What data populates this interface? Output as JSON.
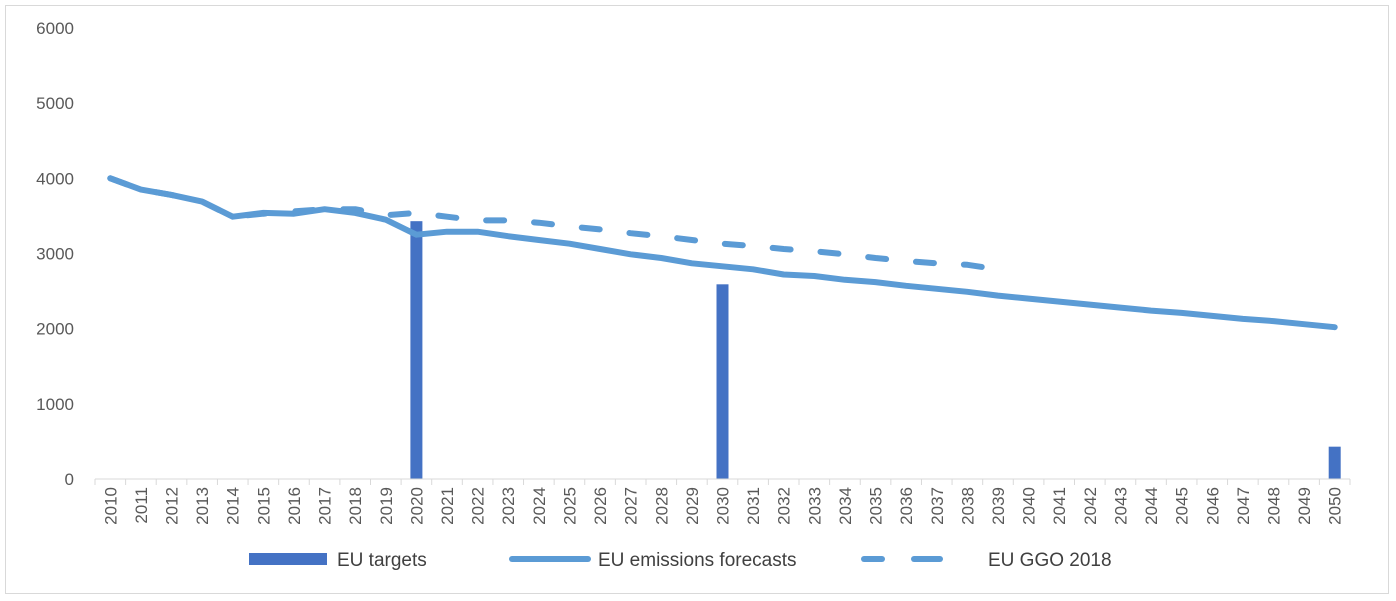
{
  "chart_data": {
    "type": "bar+line",
    "title": "",
    "xlabel": "",
    "ylabel": "",
    "ylim": [
      0,
      6000
    ],
    "yticks": [
      0,
      1000,
      2000,
      3000,
      4000,
      5000,
      6000
    ],
    "grid": false,
    "legend_position": "bottom",
    "categories": [
      "2010",
      "2011",
      "2012",
      "2013",
      "2014",
      "2015",
      "2016",
      "2017",
      "2018",
      "2019",
      "2020",
      "2021",
      "2022",
      "2023",
      "2024",
      "2025",
      "2026",
      "2027",
      "2028",
      "2029",
      "2030",
      "2031",
      "2032",
      "2033",
      "2034",
      "2035",
      "2036",
      "2037",
      "2038",
      "2039",
      "2040",
      "2041",
      "2042",
      "2043",
      "2044",
      "2045",
      "2046",
      "2047",
      "2048",
      "2049",
      "2050"
    ],
    "series": [
      {
        "name": "EU targets",
        "type": "bar",
        "color": "#4472c4",
        "values": [
          null,
          null,
          null,
          null,
          null,
          null,
          null,
          null,
          null,
          null,
          3430,
          null,
          null,
          null,
          null,
          null,
          null,
          null,
          null,
          null,
          2590,
          null,
          null,
          null,
          null,
          null,
          null,
          null,
          null,
          null,
          null,
          null,
          null,
          null,
          null,
          null,
          null,
          null,
          null,
          null,
          430
        ]
      },
      {
        "name": "EU emissions forecasts",
        "type": "line",
        "style": "solid",
        "color": "#5b9bd5",
        "values": [
          4000,
          3850,
          3780,
          3690,
          3490,
          3540,
          3530,
          3590,
          3540,
          3450,
          3250,
          3290,
          3290,
          3230,
          3180,
          3130,
          3060,
          2990,
          2940,
          2870,
          2830,
          2790,
          2720,
          2700,
          2650,
          2620,
          2570,
          2530,
          2490,
          2440,
          2400,
          2360,
          2320,
          2280,
          2240,
          2210,
          2170,
          2130,
          2100,
          2060,
          2020
        ]
      },
      {
        "name": "EU GGO 2018",
        "type": "line",
        "style": "dashed",
        "color": "#5b9bd5",
        "values": [
          4000,
          3850,
          3780,
          3690,
          3490,
          3530,
          3560,
          3590,
          3590,
          3510,
          3540,
          3490,
          3440,
          3440,
          3410,
          3360,
          3320,
          3270,
          3230,
          3180,
          3130,
          3100,
          3060,
          3030,
          2990,
          2940,
          2900,
          2870,
          2850,
          2790,
          null,
          null,
          null,
          null,
          null,
          null,
          null,
          null,
          null,
          null,
          null
        ]
      }
    ]
  }
}
